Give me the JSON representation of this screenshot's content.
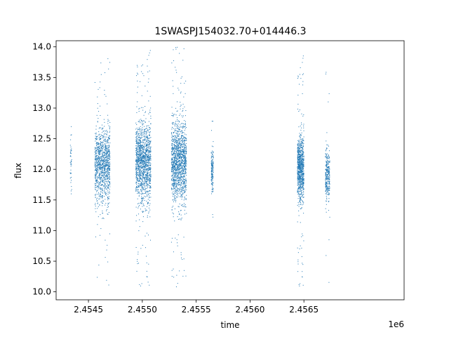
{
  "chart_data": {
    "type": "scatter",
    "title": "1SWASPJ154032.70+014446.3",
    "xlabel": "time",
    "ylabel": "flux",
    "x_offset_label": "1e6",
    "x_tick_labels": [
      "2.4545",
      "2.4550",
      "2.4555",
      "2.4560",
      "2.4565"
    ],
    "x_ticks": [
      2454500,
      2455000,
      2455500,
      2456000,
      2456500
    ],
    "y_ticks": [
      10.0,
      10.5,
      11.0,
      11.5,
      12.0,
      12.5,
      13.0,
      13.5,
      14.0
    ],
    "y_tick_labels": [
      "10.0",
      "10.5",
      "11.0",
      "11.5",
      "12.0",
      "12.5",
      "13.0",
      "13.5",
      "14.0"
    ],
    "xlim": [
      2454200,
      2457430
    ],
    "ylim": [
      9.87,
      14.1
    ],
    "grid": false,
    "marker_color": "#1f77b4",
    "clusters": [
      {
        "x_range": [
          2454330,
          2454345
        ],
        "y_center": 12.15,
        "spread": 0.45,
        "y_min": 11.6,
        "y_max": 12.95,
        "count": 40
      },
      {
        "x_range": [
          2454560,
          2454700
        ],
        "y_center": 12.05,
        "spread": 0.5,
        "y_min": 10.1,
        "y_max": 13.9,
        "count": 1100
      },
      {
        "x_range": [
          2454940,
          2455080
        ],
        "y_center": 12.1,
        "spread": 0.55,
        "y_min": 10.05,
        "y_max": 13.95,
        "count": 1400
      },
      {
        "x_range": [
          2455270,
          2455410
        ],
        "y_center": 12.1,
        "spread": 0.55,
        "y_min": 10.05,
        "y_max": 14.0,
        "count": 1400
      },
      {
        "x_range": [
          2455640,
          2455660
        ],
        "y_center": 12.0,
        "spread": 0.3,
        "y_min": 11.2,
        "y_max": 12.9,
        "count": 150
      },
      {
        "x_range": [
          2456440,
          2456500
        ],
        "y_center": 12.0,
        "spread": 0.45,
        "y_min": 10.05,
        "y_max": 13.9,
        "count": 900
      },
      {
        "x_range": [
          2456700,
          2456740
        ],
        "y_center": 11.9,
        "spread": 0.35,
        "y_min": 10.05,
        "y_max": 13.8,
        "count": 300
      }
    ]
  }
}
